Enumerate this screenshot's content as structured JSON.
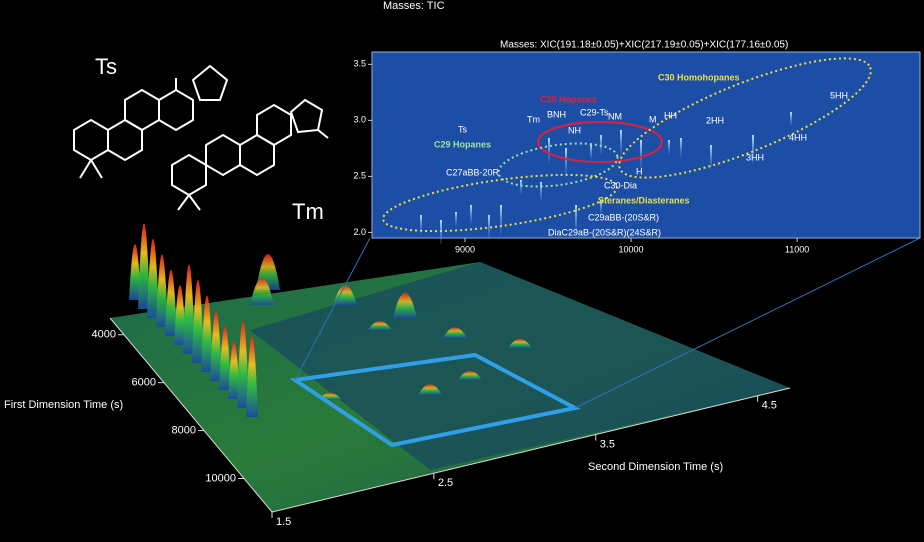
{
  "header": {
    "title": "Masses:  TIC"
  },
  "structures": {
    "labels": [
      "Ts",
      "Tm"
    ]
  },
  "surface": {
    "x_axis": {
      "label": "Second Dimension Time (s)",
      "lim": [
        1.5,
        4.7
      ],
      "ticks": [
        1.5,
        2.5,
        3.5,
        4.5
      ]
    },
    "y_axis": {
      "label": "First Dimension Time (s)",
      "lim": [
        3300,
        11400
      ],
      "ticks": [
        4000,
        6000,
        8000,
        10000
      ]
    }
  },
  "inset": {
    "title": "Masses:  XIC(191.18±0.05)+XIC(217.19±0.05)+XIC(177.16±0.05)",
    "xlim": [
      8440,
      11740
    ],
    "xticks": [
      9000,
      10000,
      11000
    ],
    "ylim": [
      1.95,
      3.61
    ],
    "yticks": [
      {
        "value": 2,
        "label": "2.0"
      },
      {
        "value": 2.5,
        "label": "2.5"
      },
      {
        "value": 3,
        "label": "3.0"
      },
      {
        "value": 3.5,
        "label": "3.5"
      }
    ],
    "groups": [
      {
        "label": "C30 Hopanes",
        "color": "#e0203a"
      },
      {
        "label": "C30 Homohopanes",
        "color": "#e8e040"
      },
      {
        "label": "C29 Hopanes",
        "color": "#9fe0a0"
      },
      {
        "label": "Steranes/Diasteranes",
        "color": "#e8e040"
      }
    ],
    "peaks": [
      "Ts",
      "Tm",
      "BNH",
      "C29-Ts",
      "NH",
      "NM",
      "M",
      "HH",
      "2HH",
      "3HH",
      "4HH",
      "5HH",
      "H",
      "C27aBB-20R",
      "C30-Dia",
      "C29aBB-(20S&R)",
      "DiaC29aB-(20S&R)(24S&R)"
    ]
  }
}
